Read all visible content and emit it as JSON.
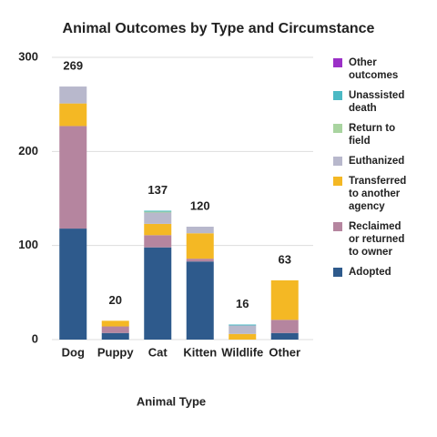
{
  "chart_data": {
    "type": "stacked_bar",
    "title": "Animal Outcomes by Type and Circumstance",
    "x_label": "Animal Type",
    "categories": [
      "Dog",
      "Puppy",
      "Cat",
      "Kitten",
      "Wildlife",
      "Other"
    ],
    "series": [
      {
        "name": "Adopted",
        "color": "#2e5a8c",
        "values": [
          118,
          7,
          98,
          83,
          0,
          7
        ]
      },
      {
        "name": "Reclaimed or returned to owner",
        "color": "#b5859f",
        "values": [
          109,
          7,
          13,
          3,
          0,
          14
        ]
      },
      {
        "name": "Transferred to another agency",
        "color": "#f4b824",
        "values": [
          24,
          6,
          12,
          27,
          6,
          42
        ]
      },
      {
        "name": "Euthanized",
        "color": "#b8b8cc",
        "values": [
          18,
          0,
          12,
          7,
          9,
          0
        ]
      },
      {
        "name": "Return to field",
        "color": "#a9d4a0",
        "values": [
          0,
          0,
          1,
          0,
          0,
          0
        ]
      },
      {
        "name": "Unassisted death",
        "color": "#4bb9c4",
        "values": [
          0,
          0,
          1,
          0,
          1,
          0
        ]
      },
      {
        "name": "Other outcomes",
        "color": "#9b30c7",
        "values": [
          0,
          0,
          0,
          0,
          0,
          0
        ]
      }
    ],
    "totals": [
      269,
      20,
      137,
      120,
      16,
      63
    ],
    "ylim": [
      0,
      300
    ],
    "yticks": [
      0,
      100,
      200,
      300
    ],
    "grid": true,
    "legend": "right"
  }
}
